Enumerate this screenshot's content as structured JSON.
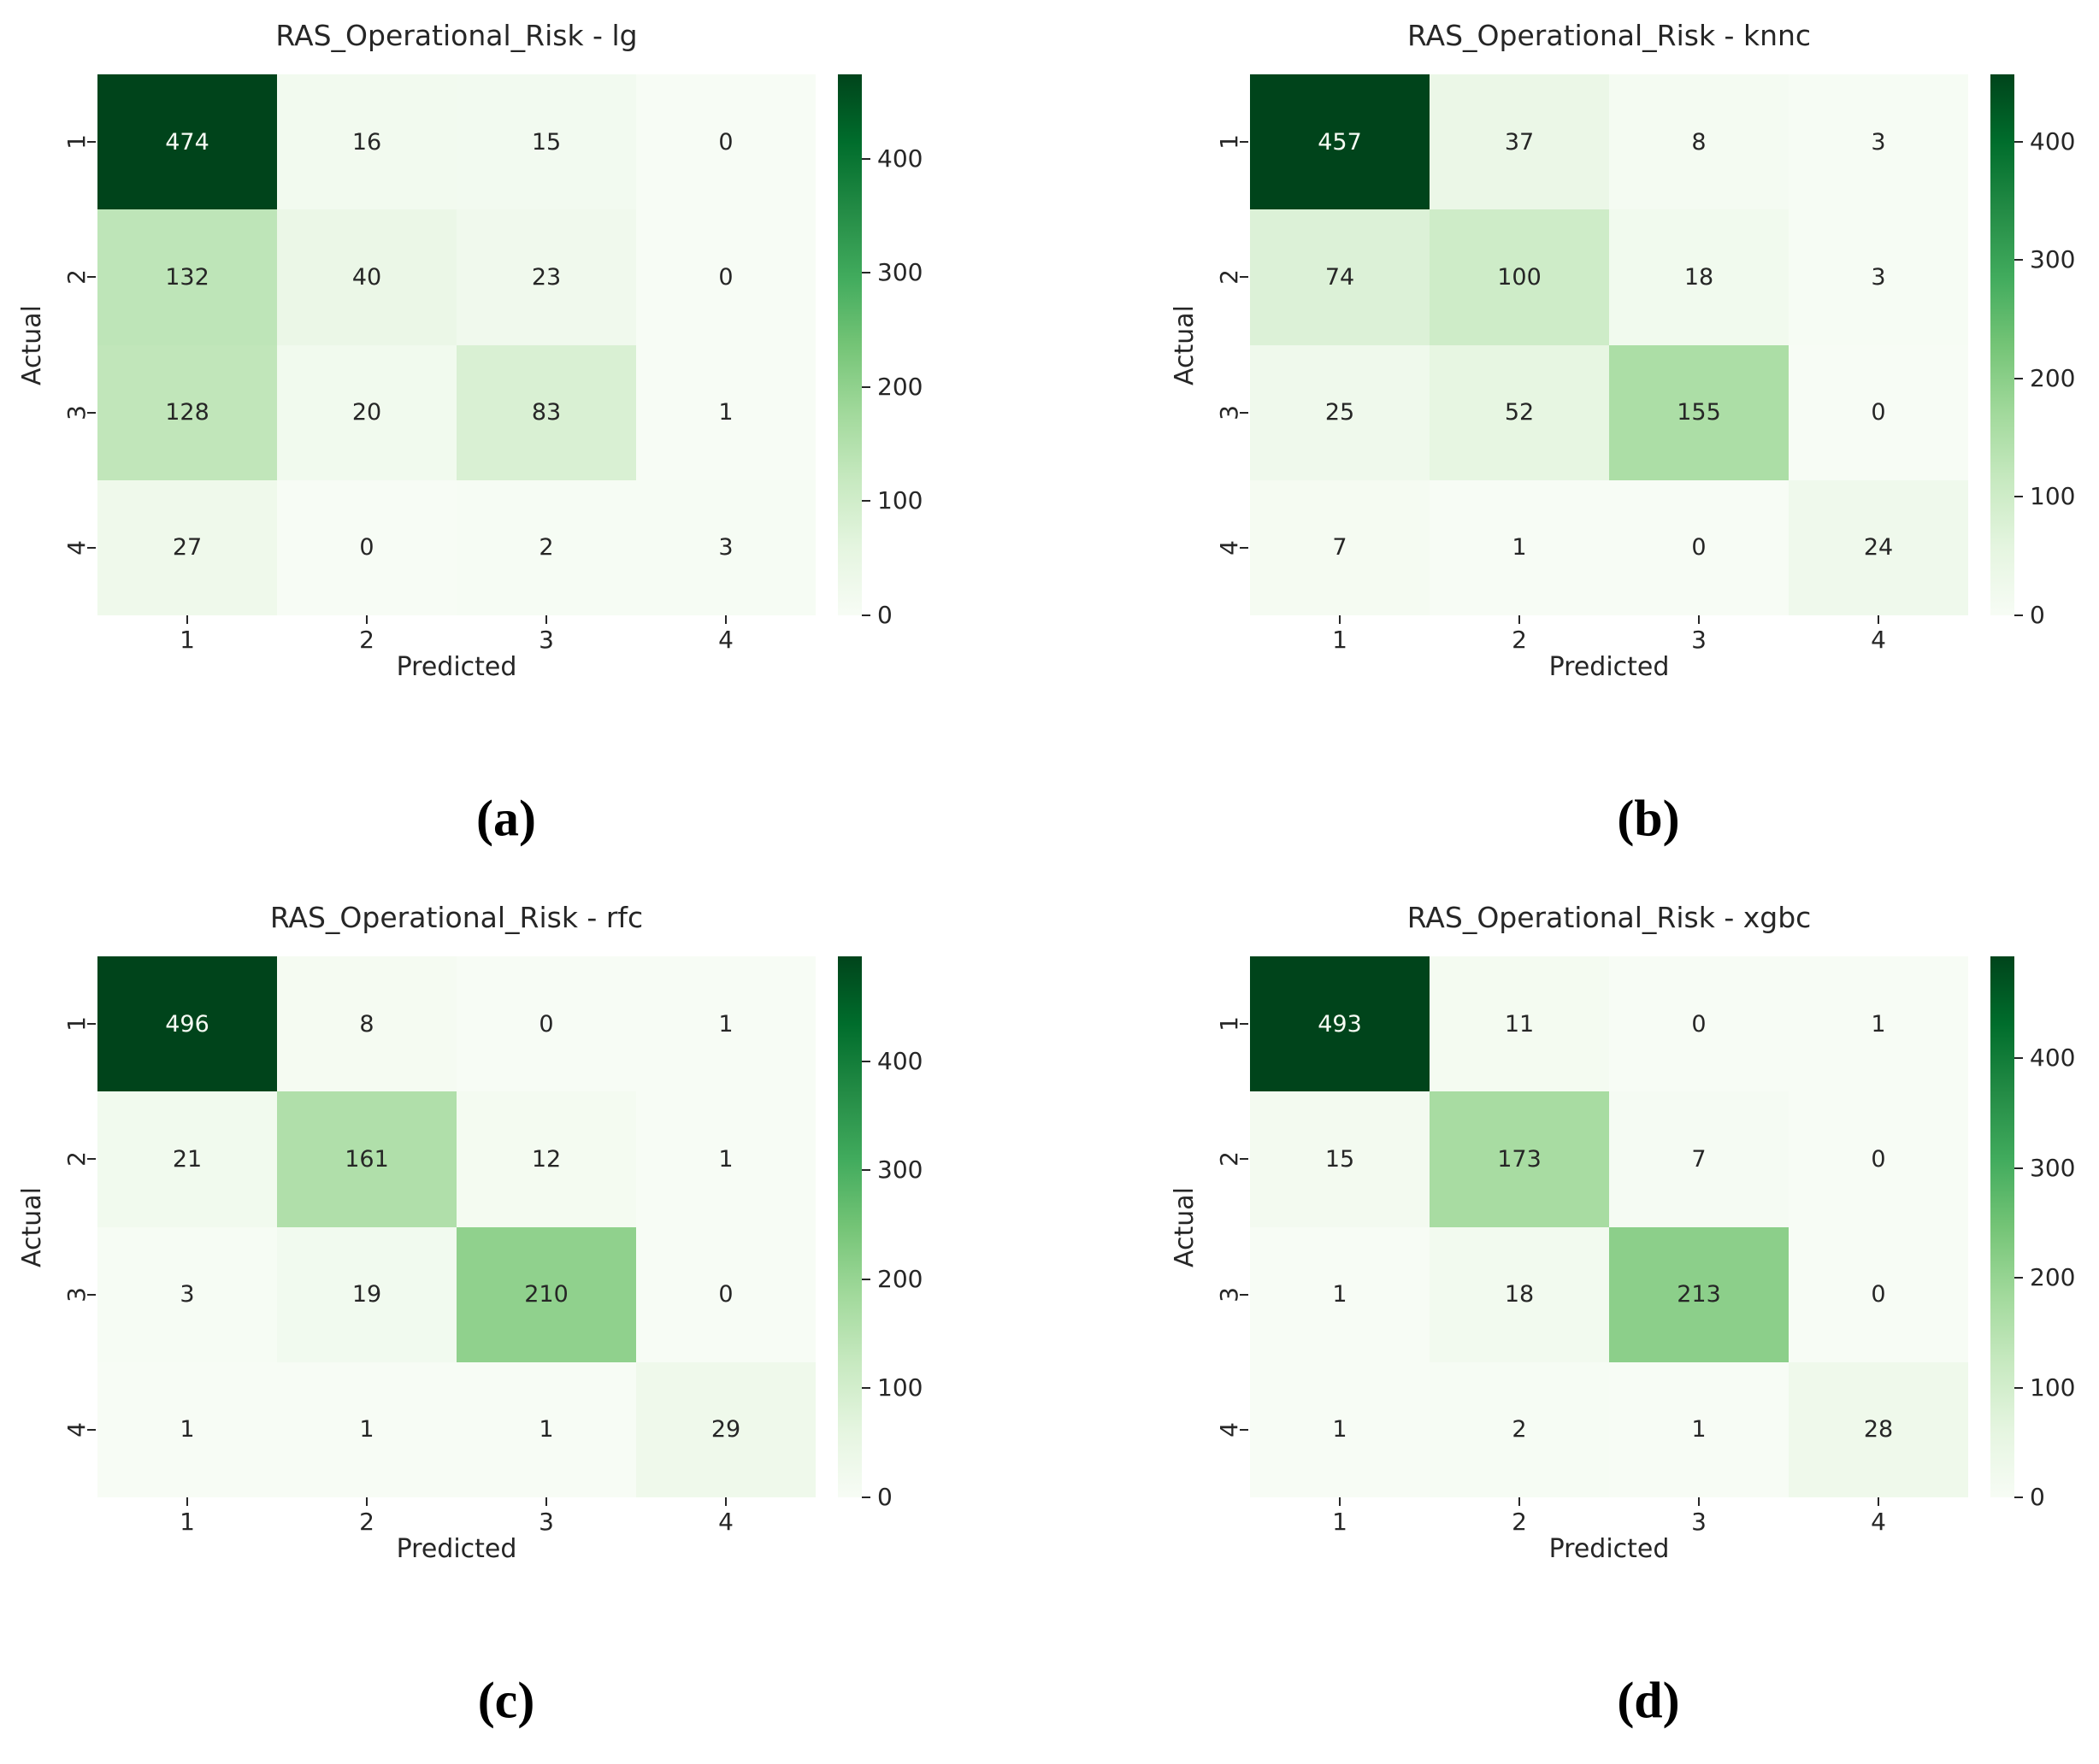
{
  "figure": {
    "background": "#ffffff"
  },
  "colors": {
    "greens_stops": [
      "#f7fcf5",
      "#e5f5e0",
      "#c7e9c0",
      "#a1d99b",
      "#74c476",
      "#41ab5d",
      "#238b45",
      "#006d2c",
      "#00441b"
    ],
    "dark_text": "#262626",
    "light_text": "#f7fcf5",
    "tick_color": "#262626"
  },
  "chart_data": [
    {
      "type": "heatmap",
      "title": "RAS_Operational_Risk - lg",
      "xlabel": "Predicted",
      "ylabel": "Actual",
      "x_ticklabels": [
        "1",
        "2",
        "3",
        "4"
      ],
      "y_ticklabels": [
        "1",
        "2",
        "3",
        "4"
      ],
      "values": [
        [
          474,
          16,
          15,
          0
        ],
        [
          132,
          40,
          23,
          0
        ],
        [
          128,
          20,
          83,
          1
        ],
        [
          27,
          0,
          2,
          3
        ]
      ],
      "vmin": 0,
      "vmax": 474,
      "colormap": "Greens",
      "colorbar_ticks": [
        0,
        100,
        200,
        300,
        400
      ],
      "legend_position": "right-colorbar",
      "grid": false,
      "caption": "(a)"
    },
    {
      "type": "heatmap",
      "title": "RAS_Operational_Risk - knnc",
      "xlabel": "Predicted",
      "ylabel": "Actual",
      "x_ticklabels": [
        "1",
        "2",
        "3",
        "4"
      ],
      "y_ticklabels": [
        "1",
        "2",
        "3",
        "4"
      ],
      "values": [
        [
          457,
          37,
          8,
          3
        ],
        [
          74,
          100,
          18,
          3
        ],
        [
          25,
          52,
          155,
          0
        ],
        [
          7,
          1,
          0,
          24
        ]
      ],
      "vmin": 0,
      "vmax": 457,
      "colormap": "Greens",
      "colorbar_ticks": [
        0,
        100,
        200,
        300,
        400
      ],
      "legend_position": "right-colorbar",
      "grid": false,
      "caption": "(b)"
    },
    {
      "type": "heatmap",
      "title": "RAS_Operational_Risk - rfc",
      "xlabel": "Predicted",
      "ylabel": "Actual",
      "x_ticklabels": [
        "1",
        "2",
        "3",
        "4"
      ],
      "y_ticklabels": [
        "1",
        "2",
        "3",
        "4"
      ],
      "values": [
        [
          496,
          8,
          0,
          1
        ],
        [
          21,
          161,
          12,
          1
        ],
        [
          3,
          19,
          210,
          0
        ],
        [
          1,
          1,
          1,
          29
        ]
      ],
      "vmin": 0,
      "vmax": 496,
      "colormap": "Greens",
      "colorbar_ticks": [
        0,
        100,
        200,
        300,
        400
      ],
      "legend_position": "right-colorbar",
      "grid": false,
      "caption": "(c)"
    },
    {
      "type": "heatmap",
      "title": "RAS_Operational_Risk - xgbc",
      "xlabel": "Predicted",
      "ylabel": "Actual",
      "x_ticklabels": [
        "1",
        "2",
        "3",
        "4"
      ],
      "y_ticklabels": [
        "1",
        "2",
        "3",
        "4"
      ],
      "values": [
        [
          493,
          11,
          0,
          1
        ],
        [
          15,
          173,
          7,
          0
        ],
        [
          1,
          18,
          213,
          0
        ],
        [
          1,
          2,
          1,
          28
        ]
      ],
      "vmin": 0,
      "vmax": 493,
      "colormap": "Greens",
      "colorbar_ticks": [
        0,
        100,
        200,
        300,
        400
      ],
      "legend_position": "right-colorbar",
      "grid": false,
      "caption": "(d)"
    }
  ]
}
